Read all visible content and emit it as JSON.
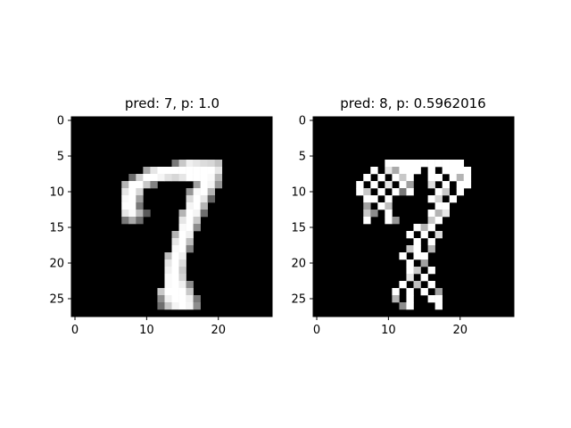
{
  "figure": {
    "background": "#ffffff"
  },
  "chart_data": [
    {
      "type": "heatmap",
      "title": "pred: 7, p: 1.0",
      "xlabel": "",
      "ylabel": "",
      "xlim": [
        -0.5,
        27.5
      ],
      "ylim": [
        27.5,
        -0.5
      ],
      "x_ticks": [
        0,
        10,
        20
      ],
      "y_ticks": [
        0,
        5,
        10,
        15,
        20,
        25
      ],
      "colormap": "gray",
      "grid": false,
      "pixels": [
        [
          6,
          14,
          120
        ],
        [
          6,
          15,
          200
        ],
        [
          6,
          16,
          240
        ],
        [
          6,
          17,
          230
        ],
        [
          6,
          18,
          220
        ],
        [
          6,
          19,
          215
        ],
        [
          6,
          20,
          195
        ],
        [
          7,
          10,
          170
        ],
        [
          7,
          11,
          230
        ],
        [
          7,
          12,
          255
        ],
        [
          7,
          13,
          255
        ],
        [
          7,
          14,
          255
        ],
        [
          7,
          15,
          255
        ],
        [
          7,
          16,
          255
        ],
        [
          7,
          17,
          255
        ],
        [
          7,
          18,
          255
        ],
        [
          7,
          19,
          255
        ],
        [
          7,
          20,
          230
        ],
        [
          8,
          8,
          110
        ],
        [
          8,
          9,
          210
        ],
        [
          8,
          10,
          255
        ],
        [
          8,
          11,
          255
        ],
        [
          8,
          12,
          245
        ],
        [
          8,
          13,
          225
        ],
        [
          8,
          14,
          215
        ],
        [
          8,
          15,
          230
        ],
        [
          8,
          16,
          255
        ],
        [
          8,
          17,
          255
        ],
        [
          8,
          18,
          255
        ],
        [
          8,
          19,
          250
        ],
        [
          8,
          20,
          185
        ],
        [
          9,
          7,
          180
        ],
        [
          9,
          8,
          255
        ],
        [
          9,
          9,
          255
        ],
        [
          9,
          10,
          200
        ],
        [
          9,
          11,
          130
        ],
        [
          9,
          17,
          160
        ],
        [
          9,
          18,
          255
        ],
        [
          9,
          19,
          245
        ],
        [
          9,
          20,
          150
        ],
        [
          10,
          7,
          230
        ],
        [
          10,
          8,
          255
        ],
        [
          10,
          9,
          215
        ],
        [
          10,
          16,
          150
        ],
        [
          10,
          17,
          250
        ],
        [
          10,
          18,
          255
        ],
        [
          10,
          19,
          180
        ],
        [
          11,
          7,
          250
        ],
        [
          11,
          8,
          255
        ],
        [
          11,
          9,
          160
        ],
        [
          11,
          16,
          220
        ],
        [
          11,
          17,
          255
        ],
        [
          11,
          18,
          230
        ],
        [
          11,
          19,
          100
        ],
        [
          12,
          7,
          255
        ],
        [
          12,
          8,
          255
        ],
        [
          12,
          9,
          120
        ],
        [
          12,
          16,
          245
        ],
        [
          12,
          17,
          255
        ],
        [
          12,
          18,
          180
        ],
        [
          13,
          7,
          230
        ],
        [
          13,
          8,
          250
        ],
        [
          13,
          9,
          185
        ],
        [
          13,
          10,
          90
        ],
        [
          13,
          15,
          180
        ],
        [
          13,
          16,
          255
        ],
        [
          13,
          17,
          245
        ],
        [
          13,
          18,
          110
        ],
        [
          14,
          7,
          120
        ],
        [
          14,
          8,
          170
        ],
        [
          14,
          9,
          110
        ],
        [
          14,
          15,
          230
        ],
        [
          14,
          16,
          255
        ],
        [
          14,
          17,
          200
        ],
        [
          15,
          15,
          250
        ],
        [
          15,
          16,
          255
        ],
        [
          15,
          17,
          140
        ],
        [
          16,
          14,
          180
        ],
        [
          16,
          15,
          255
        ],
        [
          16,
          16,
          240
        ],
        [
          17,
          14,
          230
        ],
        [
          17,
          15,
          255
        ],
        [
          17,
          16,
          190
        ],
        [
          18,
          14,
          250
        ],
        [
          18,
          15,
          255
        ],
        [
          18,
          16,
          130
        ],
        [
          19,
          13,
          190
        ],
        [
          19,
          14,
          255
        ],
        [
          19,
          15,
          240
        ],
        [
          20,
          13,
          230
        ],
        [
          20,
          14,
          255
        ],
        [
          20,
          15,
          220
        ],
        [
          21,
          13,
          240
        ],
        [
          21,
          14,
          255
        ],
        [
          21,
          15,
          200
        ],
        [
          22,
          13,
          250
        ],
        [
          22,
          14,
          255
        ],
        [
          22,
          15,
          210
        ],
        [
          23,
          13,
          250
        ],
        [
          23,
          14,
          255
        ],
        [
          23,
          15,
          240
        ],
        [
          23,
          16,
          140
        ],
        [
          24,
          12,
          200
        ],
        [
          24,
          13,
          255
        ],
        [
          24,
          14,
          255
        ],
        [
          24,
          15,
          255
        ],
        [
          24,
          16,
          200
        ],
        [
          25,
          12,
          140
        ],
        [
          25,
          13,
          240
        ],
        [
          25,
          14,
          255
        ],
        [
          25,
          15,
          255
        ],
        [
          25,
          16,
          240
        ],
        [
          25,
          17,
          120
        ],
        [
          26,
          12,
          110
        ],
        [
          26,
          13,
          200
        ],
        [
          26,
          14,
          245
        ],
        [
          26,
          15,
          255
        ],
        [
          26,
          16,
          245
        ],
        [
          26,
          17,
          140
        ]
      ]
    },
    {
      "type": "heatmap",
      "title": "pred: 8, p: 0.5962016",
      "xlabel": "",
      "ylabel": "",
      "xlim": [
        -0.5,
        27.5
      ],
      "ylim": [
        27.5,
        -0.5
      ],
      "x_ticks": [
        0,
        10,
        20
      ],
      "y_ticks": [
        0,
        5,
        10,
        15,
        20,
        25
      ],
      "colormap": "gray",
      "grid": false,
      "pixels": [
        [
          6,
          10,
          255
        ],
        [
          6,
          11,
          255
        ],
        [
          6,
          12,
          255
        ],
        [
          6,
          13,
          255
        ],
        [
          6,
          14,
          255
        ],
        [
          6,
          15,
          255
        ],
        [
          6,
          16,
          255
        ],
        [
          6,
          17,
          255
        ],
        [
          6,
          18,
          255
        ],
        [
          6,
          19,
          255
        ],
        [
          6,
          20,
          255
        ],
        [
          7,
          8,
          255
        ],
        [
          7,
          10,
          230
        ],
        [
          7,
          11,
          170
        ],
        [
          7,
          12,
          255
        ],
        [
          7,
          13,
          255
        ],
        [
          7,
          14,
          255
        ],
        [
          7,
          16,
          255
        ],
        [
          7,
          18,
          255
        ],
        [
          7,
          19,
          255
        ],
        [
          7,
          20,
          255
        ],
        [
          7,
          21,
          255
        ],
        [
          8,
          7,
          255
        ],
        [
          8,
          9,
          255
        ],
        [
          8,
          11,
          255
        ],
        [
          8,
          12,
          200
        ],
        [
          8,
          13,
          255
        ],
        [
          8,
          16,
          255
        ],
        [
          8,
          17,
          255
        ],
        [
          8,
          19,
          255
        ],
        [
          8,
          20,
          180
        ],
        [
          8,
          21,
          255
        ],
        [
          9,
          6,
          255
        ],
        [
          9,
          8,
          255
        ],
        [
          9,
          10,
          230
        ],
        [
          9,
          12,
          255
        ],
        [
          9,
          13,
          160
        ],
        [
          9,
          16,
          220
        ],
        [
          9,
          18,
          255
        ],
        [
          9,
          20,
          255
        ],
        [
          9,
          21,
          255
        ],
        [
          10,
          6,
          255
        ],
        [
          10,
          7,
          200
        ],
        [
          10,
          9,
          255
        ],
        [
          10,
          11,
          255
        ],
        [
          10,
          12,
          120
        ],
        [
          10,
          13,
          255
        ],
        [
          10,
          17,
          255
        ],
        [
          10,
          18,
          200
        ],
        [
          10,
          20,
          255
        ],
        [
          11,
          7,
          255
        ],
        [
          11,
          8,
          255
        ],
        [
          11,
          10,
          255
        ],
        [
          11,
          16,
          255
        ],
        [
          11,
          17,
          210
        ],
        [
          11,
          19,
          255
        ],
        [
          12,
          7,
          160
        ],
        [
          12,
          9,
          255
        ],
        [
          12,
          10,
          190
        ],
        [
          12,
          17,
          255
        ],
        [
          12,
          18,
          255
        ],
        [
          13,
          7,
          200
        ],
        [
          13,
          8,
          140
        ],
        [
          13,
          10,
          255
        ],
        [
          13,
          16,
          255
        ],
        [
          13,
          17,
          180
        ],
        [
          13,
          18,
          230
        ],
        [
          14,
          7,
          255
        ],
        [
          14,
          10,
          255
        ],
        [
          14,
          11,
          150
        ],
        [
          14,
          16,
          200
        ],
        [
          14,
          17,
          255
        ],
        [
          15,
          14,
          255
        ],
        [
          15,
          15,
          180
        ],
        [
          15,
          16,
          255
        ],
        [
          16,
          13,
          255
        ],
        [
          16,
          15,
          255
        ],
        [
          16,
          17,
          220
        ],
        [
          17,
          14,
          255
        ],
        [
          17,
          16,
          255
        ],
        [
          18,
          13,
          200
        ],
        [
          18,
          14,
          255
        ],
        [
          18,
          16,
          180
        ],
        [
          19,
          12,
          255
        ],
        [
          19,
          14,
          255
        ],
        [
          19,
          15,
          255
        ],
        [
          20,
          13,
          255
        ],
        [
          20,
          15,
          160
        ],
        [
          21,
          13,
          255
        ],
        [
          21,
          14,
          200
        ],
        [
          21,
          16,
          255
        ],
        [
          22,
          13,
          230
        ],
        [
          22,
          15,
          255
        ],
        [
          23,
          12,
          255
        ],
        [
          23,
          14,
          190
        ],
        [
          23,
          16,
          255
        ],
        [
          24,
          11,
          255
        ],
        [
          24,
          13,
          255
        ],
        [
          24,
          15,
          255
        ],
        [
          24,
          17,
          160
        ],
        [
          25,
          11,
          180
        ],
        [
          25,
          13,
          255
        ],
        [
          25,
          16,
          255
        ],
        [
          25,
          17,
          255
        ],
        [
          26,
          12,
          140
        ],
        [
          26,
          13,
          255
        ],
        [
          26,
          17,
          255
        ]
      ]
    }
  ]
}
